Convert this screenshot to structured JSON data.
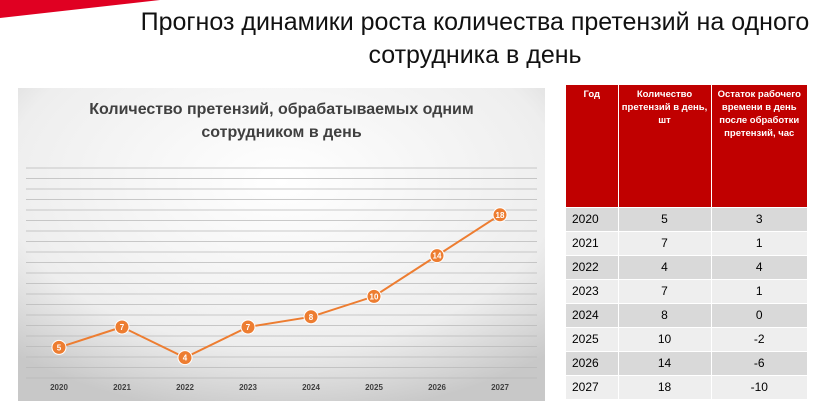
{
  "page": {
    "title": "Прогноз динамики роста количества претензий на одного сотрудника в день",
    "accent_color": "#e00022"
  },
  "chart_data": {
    "type": "line",
    "title": "Количество претензий, обрабатываемых одним сотрудником в день",
    "categories": [
      "2020",
      "2021",
      "2022",
      "2023",
      "2024",
      "2025",
      "2026",
      "2027"
    ],
    "values": [
      5,
      7,
      4,
      7,
      8,
      10,
      14,
      18
    ],
    "xlabel": "",
    "ylabel": "",
    "ylim": [
      0,
      20
    ],
    "grid": true,
    "data_labels": true,
    "line_color": "#ed7d31",
    "background": "gradient gray"
  },
  "table": {
    "headers": [
      "Год",
      "Количество претензий в день, шт",
      "Остаток рабочего времени в день после обработки претензий, час"
    ],
    "rows": [
      [
        "2020",
        "5",
        "3"
      ],
      [
        "2021",
        "7",
        "1"
      ],
      [
        "2022",
        "4",
        "4"
      ],
      [
        "2023",
        "7",
        "1"
      ],
      [
        "2024",
        "8",
        "0"
      ],
      [
        "2025",
        "10",
        "-2"
      ],
      [
        "2026",
        "14",
        "-6"
      ],
      [
        "2027",
        "18",
        "-10"
      ]
    ],
    "header_color": "#c00000"
  }
}
